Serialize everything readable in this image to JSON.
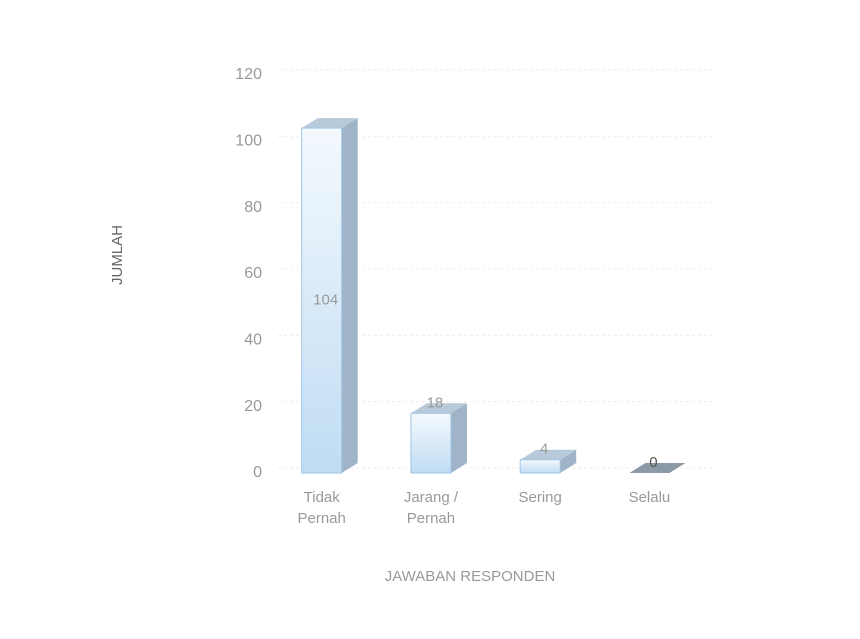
{
  "chart_data": {
    "type": "bar3d",
    "y_label": "JUMLAH",
    "x_label": "JAWABAN RESPONDEN",
    "categories": [
      "Tidak Pernah",
      "Jarang / Pernah",
      "Sering",
      "Selalu"
    ],
    "values": [
      104,
      18,
      4,
      0
    ],
    "color": "#cfe6f8",
    "ylim": [
      0,
      120
    ],
    "yticks": [
      0,
      20,
      40,
      60,
      80,
      100,
      120
    ],
    "grid": true
  }
}
